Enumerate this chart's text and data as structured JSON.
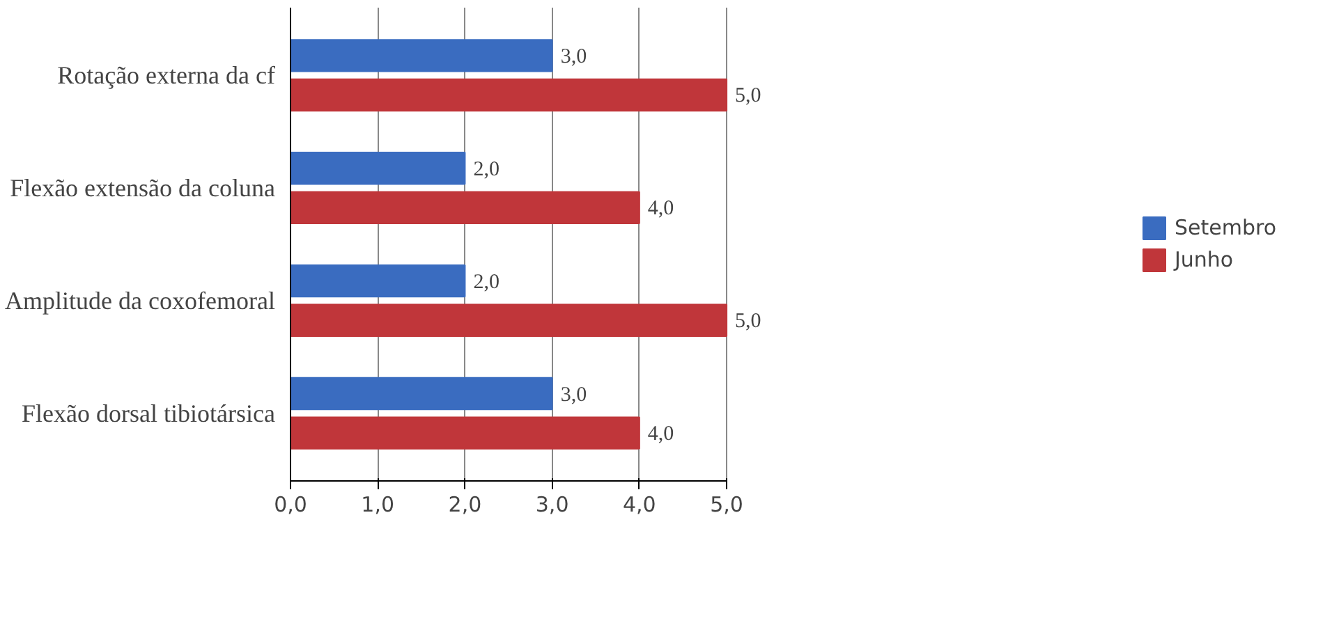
{
  "chart_data": {
    "type": "bar",
    "orientation": "horizontal",
    "categories": [
      "Rotação externa da cf",
      "Flexão extensão da coluna",
      "Amplitude da coxofemoral",
      "Flexão dorsal tibiotársica"
    ],
    "series": [
      {
        "name": "Setembro",
        "color": "#3a6cc0",
        "values": [
          3,
          2,
          2,
          3
        ],
        "value_labels": [
          "3,0",
          "2,0",
          "2,0",
          "3,0"
        ]
      },
      {
        "name": "Junho",
        "color": "#c0363a",
        "values": [
          5,
          4,
          5,
          4
        ],
        "value_labels": [
          "5,0",
          "4,0",
          "5,0",
          "4,0"
        ]
      }
    ],
    "xlim": [
      0,
      5
    ],
    "xticks": [
      {
        "value": 0,
        "label": "0,0"
      },
      {
        "value": 1,
        "label": "1,0"
      },
      {
        "value": 2,
        "label": "2,0"
      },
      {
        "value": 3,
        "label": "3,0"
      },
      {
        "value": 4,
        "label": "4,0"
      },
      {
        "value": 5,
        "label": "5,0"
      }
    ],
    "grid": "x",
    "legend": "right"
  }
}
